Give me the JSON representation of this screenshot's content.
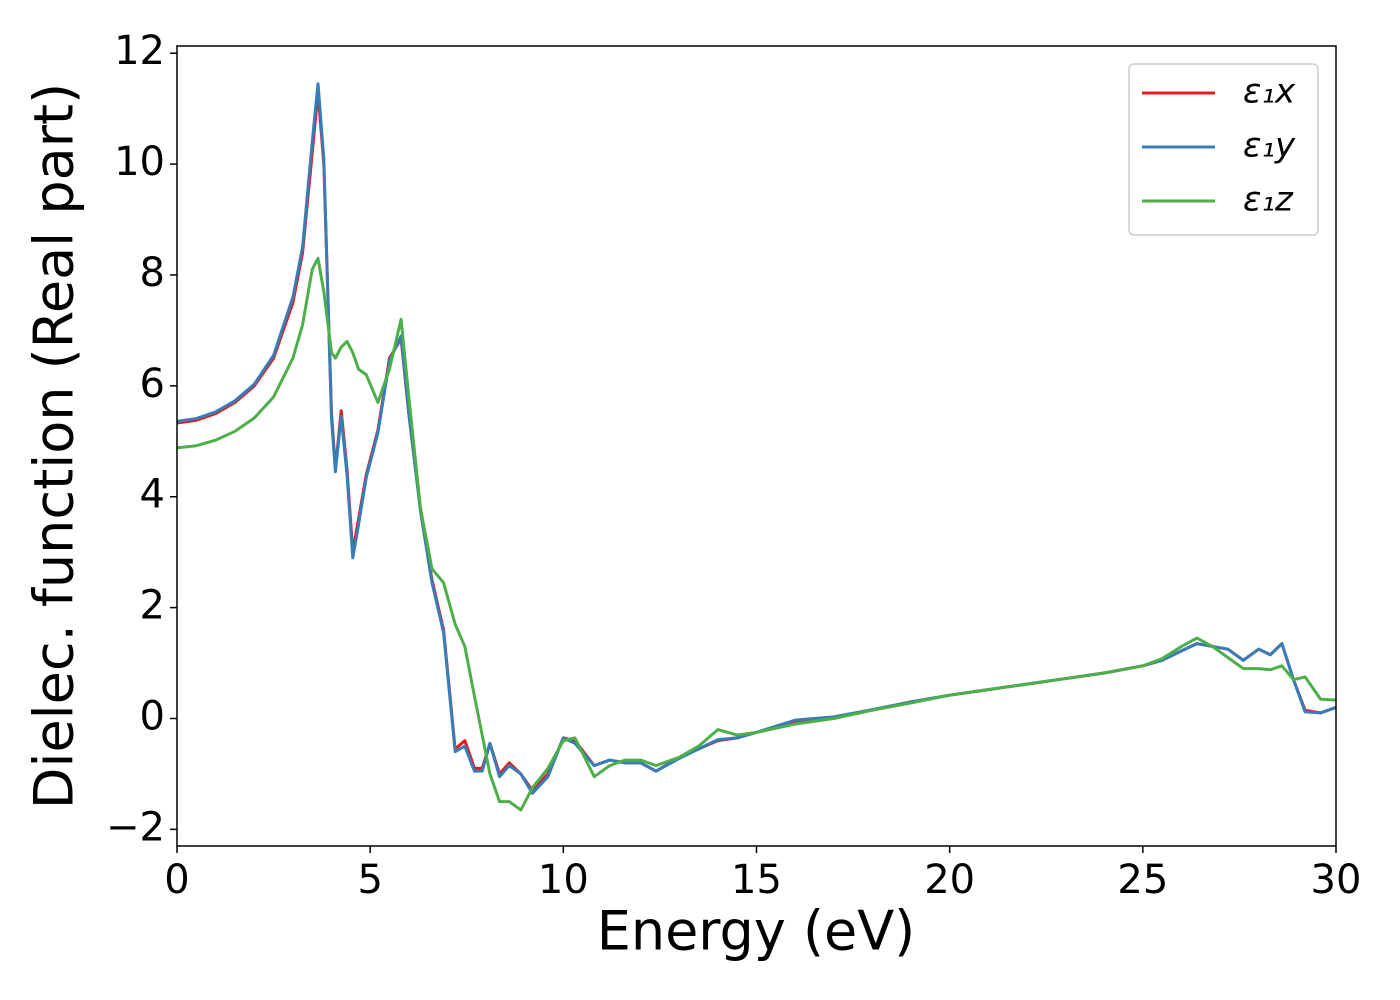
{
  "chart_data": {
    "type": "line",
    "x_label": "Energy (eV)",
    "y_label": "Dielec. function (Real part)",
    "xlim": [
      0,
      30
    ],
    "ylim": [
      -2.3,
      12.13
    ],
    "xticks": [
      0,
      5,
      10,
      15,
      20,
      25,
      30
    ],
    "yticks": [
      {
        "value": -2,
        "label": "−2"
      },
      0,
      2,
      4,
      6,
      8,
      10,
      12
    ],
    "legend": "upper right",
    "grid": false,
    "x": [
      0,
      0.5,
      1,
      1.5,
      2,
      2.5,
      3,
      3.25,
      3.5,
      3.65,
      3.8,
      4.0,
      4.1,
      4.25,
      4.4,
      4.55,
      4.7,
      4.9,
      5.2,
      5.5,
      5.8,
      6.0,
      6.3,
      6.6,
      6.9,
      7.2,
      7.45,
      7.7,
      7.9,
      8.1,
      8.35,
      8.6,
      8.9,
      9.2,
      9.6,
      10.0,
      10.3,
      10.8,
      11.2,
      11.6,
      12.0,
      12.4,
      13,
      13.5,
      14,
      14.5,
      15,
      16,
      17,
      18,
      19,
      20,
      21,
      22,
      23,
      24,
      25,
      25.5,
      26,
      26.4,
      26.8,
      27.2,
      27.6,
      28,
      28.3,
      28.6,
      28.9,
      29.2,
      29.6,
      30
    ],
    "series": [
      {
        "name": "ε₁x",
        "color": "#e41a1c",
        "values": [
          5.33,
          5.38,
          5.5,
          5.7,
          6.0,
          6.5,
          7.5,
          8.4,
          10.2,
          11.3,
          10.0,
          5.5,
          4.5,
          5.55,
          4.5,
          3.0,
          3.6,
          4.4,
          5.2,
          6.5,
          6.85,
          5.5,
          3.8,
          2.5,
          1.6,
          -0.55,
          -0.4,
          -0.9,
          -0.9,
          -0.45,
          -1.0,
          -0.8,
          -1.0,
          -1.3,
          -1.0,
          -0.35,
          -0.4,
          -0.85,
          -0.75,
          -0.8,
          -0.8,
          -0.95,
          -0.7,
          -0.55,
          -0.4,
          -0.35,
          -0.25,
          -0.05,
          0.02,
          0.15,
          0.3,
          0.42,
          0.52,
          0.62,
          0.72,
          0.82,
          0.95,
          1.05,
          1.22,
          1.35,
          1.3,
          1.25,
          1.05,
          1.25,
          1.15,
          1.35,
          0.7,
          0.15,
          0.1,
          0.2
        ]
      },
      {
        "name": "ε₁y",
        "color": "#377eb8",
        "values": [
          5.36,
          5.41,
          5.53,
          5.73,
          6.03,
          6.55,
          7.6,
          8.5,
          10.4,
          11.45,
          10.1,
          5.4,
          4.45,
          5.45,
          4.4,
          2.9,
          3.5,
          4.35,
          5.15,
          6.45,
          6.9,
          5.5,
          3.75,
          2.45,
          1.55,
          -0.6,
          -0.5,
          -0.95,
          -0.95,
          -0.45,
          -1.05,
          -0.85,
          -1.0,
          -1.35,
          -1.05,
          -0.35,
          -0.45,
          -0.85,
          -0.75,
          -0.8,
          -0.8,
          -0.95,
          -0.72,
          -0.55,
          -0.38,
          -0.35,
          -0.25,
          -0.03,
          0.03,
          0.16,
          0.3,
          0.42,
          0.52,
          0.62,
          0.72,
          0.82,
          0.95,
          1.05,
          1.22,
          1.35,
          1.3,
          1.25,
          1.05,
          1.25,
          1.15,
          1.35,
          0.7,
          0.12,
          0.1,
          0.2
        ]
      },
      {
        "name": "ε₁z",
        "color": "#4daf4a",
        "values": [
          4.88,
          4.92,
          5.02,
          5.18,
          5.42,
          5.8,
          6.5,
          7.1,
          8.1,
          8.3,
          7.7,
          6.6,
          6.5,
          6.7,
          6.8,
          6.6,
          6.3,
          6.2,
          5.7,
          6.3,
          7.2,
          5.8,
          3.8,
          2.7,
          2.45,
          1.7,
          1.3,
          0.4,
          -0.3,
          -1.0,
          -1.5,
          -1.5,
          -1.65,
          -1.25,
          -0.9,
          -0.4,
          -0.35,
          -1.05,
          -0.85,
          -0.75,
          -0.75,
          -0.85,
          -0.7,
          -0.5,
          -0.2,
          -0.3,
          -0.25,
          -0.1,
          0.0,
          0.15,
          0.28,
          0.42,
          0.52,
          0.62,
          0.72,
          0.82,
          0.95,
          1.08,
          1.3,
          1.45,
          1.3,
          1.1,
          0.9,
          0.9,
          0.88,
          0.95,
          0.7,
          0.75,
          0.35,
          0.33
        ]
      }
    ]
  }
}
